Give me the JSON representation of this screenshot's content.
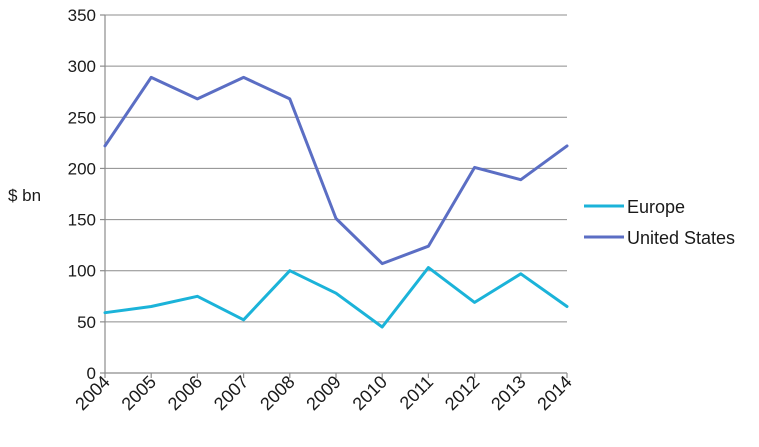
{
  "chart_data": {
    "type": "line",
    "x": [
      "2004",
      "2005",
      "2006",
      "2007",
      "2008",
      "2009",
      "2010",
      "2011",
      "2012",
      "2013",
      "2014"
    ],
    "ylabel": "$ bn",
    "ylim": [
      0,
      350
    ],
    "yticks": [
      "0",
      "50",
      "100",
      "150",
      "200",
      "250",
      "300",
      "350"
    ],
    "grid": true,
    "legend_position": "right",
    "series": [
      {
        "name": "Europe",
        "color": "#1bb3d9",
        "values": [
          59,
          65,
          75,
          52,
          100,
          78,
          45,
          103,
          69,
          97,
          65
        ]
      },
      {
        "name": "United States",
        "color": "#5b6ec4",
        "values": [
          222,
          289,
          268,
          289,
          268,
          151,
          107,
          124,
          201,
          189,
          222
        ]
      }
    ]
  }
}
